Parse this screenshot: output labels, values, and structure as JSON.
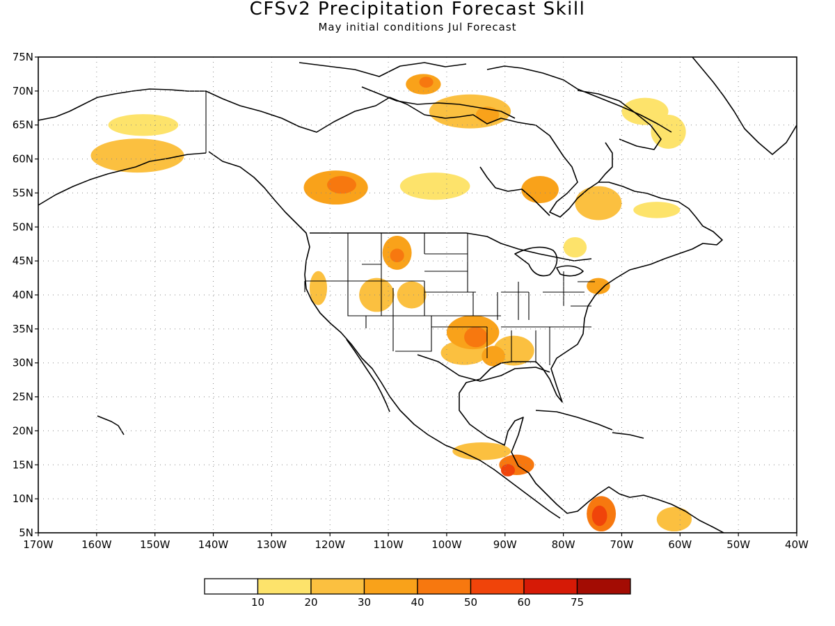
{
  "title": "CFSv2 Precipitation Forecast Skill",
  "subtitle": "May initial conditions   Jul Forecast",
  "map": {
    "lon_range": [
      -170,
      -40
    ],
    "lat_range": [
      5,
      75
    ],
    "lat_ticks": [
      {
        "value": 75,
        "label": "75N"
      },
      {
        "value": 70,
        "label": "70N"
      },
      {
        "value": 65,
        "label": "65N"
      },
      {
        "value": 60,
        "label": "60N"
      },
      {
        "value": 55,
        "label": "55N"
      },
      {
        "value": 50,
        "label": "50N"
      },
      {
        "value": 45,
        "label": "45N"
      },
      {
        "value": 40,
        "label": "40N"
      },
      {
        "value": 35,
        "label": "35N"
      },
      {
        "value": 30,
        "label": "30N"
      },
      {
        "value": 25,
        "label": "25N"
      },
      {
        "value": 20,
        "label": "20N"
      },
      {
        "value": 15,
        "label": "15N"
      },
      {
        "value": 10,
        "label": "10N"
      },
      {
        "value": 5,
        "label": "5N"
      }
    ],
    "lon_ticks": [
      {
        "value": -170,
        "label": "170W"
      },
      {
        "value": -160,
        "label": "160W"
      },
      {
        "value": -150,
        "label": "150W"
      },
      {
        "value": -140,
        "label": "140W"
      },
      {
        "value": -130,
        "label": "130W"
      },
      {
        "value": -120,
        "label": "120W"
      },
      {
        "value": -110,
        "label": "110W"
      },
      {
        "value": -100,
        "label": "100W"
      },
      {
        "value": -90,
        "label": "90W"
      },
      {
        "value": -80,
        "label": "80W"
      },
      {
        "value": -70,
        "label": "70W"
      },
      {
        "value": -60,
        "label": "60W"
      },
      {
        "value": -50,
        "label": "50W"
      },
      {
        "value": -40,
        "label": "40W"
      }
    ],
    "grid": true
  },
  "colorbar": {
    "colors": [
      "#ffffff",
      "#fde36b",
      "#fbc040",
      "#f9a21a",
      "#f7780f",
      "#f0440a",
      "#d61a06",
      "#a30c03"
    ],
    "labels": [
      "10",
      "20",
      "30",
      "40",
      "50",
      "60",
      "75"
    ]
  },
  "skill_regions": [
    {
      "lon": -119,
      "lat": 55.8,
      "rx": 5.5,
      "ry": 2.5,
      "level": 3
    },
    {
      "lon": -118,
      "lat": 56.2,
      "rx": 2.5,
      "ry": 1.3,
      "level": 4
    },
    {
      "lon": -108.5,
      "lat": 46.2,
      "rx": 2.5,
      "ry": 2.5,
      "level": 3
    },
    {
      "lon": -108.5,
      "lat": 45.8,
      "rx": 1.2,
      "ry": 1.0,
      "level": 4
    },
    {
      "lon": -95.5,
      "lat": 34.5,
      "rx": 4.5,
      "ry": 2.5,
      "level": 3
    },
    {
      "lon": -95,
      "lat": 33.8,
      "rx": 2.0,
      "ry": 1.5,
      "level": 4
    },
    {
      "lon": -97,
      "lat": 31.5,
      "rx": 4.0,
      "ry": 1.8,
      "level": 2
    },
    {
      "lon": -88.5,
      "lat": 31.8,
      "rx": 3.5,
      "ry": 2.2,
      "level": 2
    },
    {
      "lon": -92,
      "lat": 31,
      "rx": 2.0,
      "ry": 1.5,
      "level": 3
    },
    {
      "lon": -88,
      "lat": 15,
      "rx": 3.0,
      "ry": 1.5,
      "level": 4
    },
    {
      "lon": -89.5,
      "lat": 14.2,
      "rx": 1.2,
      "ry": 0.9,
      "level": 5
    },
    {
      "lon": -94,
      "lat": 17,
      "rx": 5.0,
      "ry": 1.3,
      "level": 2
    },
    {
      "lon": -73.5,
      "lat": 7.8,
      "rx": 2.5,
      "ry": 2.6,
      "level": 4
    },
    {
      "lon": -73.8,
      "lat": 7.5,
      "rx": 1.3,
      "ry": 1.5,
      "level": 5
    },
    {
      "lon": -61,
      "lat": 7,
      "rx": 3.0,
      "ry": 1.8,
      "level": 2
    },
    {
      "lon": -84,
      "lat": 55.5,
      "rx": 3.2,
      "ry": 2.0,
      "level": 3
    },
    {
      "lon": -74,
      "lat": 53.5,
      "rx": 4.0,
      "ry": 2.5,
      "level": 2
    },
    {
      "lon": -96,
      "lat": 67,
      "rx": 7.0,
      "ry": 2.5,
      "level": 2
    },
    {
      "lon": -93,
      "lat": 66.5,
      "rx": 2.0,
      "ry": 1.2,
      "level": 3
    },
    {
      "lon": -104,
      "lat": 71,
      "rx": 3.0,
      "ry": 1.5,
      "level": 3
    },
    {
      "lon": -103.5,
      "lat": 71.3,
      "rx": 1.2,
      "ry": 0.8,
      "level": 4
    },
    {
      "lon": -153,
      "lat": 60.5,
      "rx": 8.0,
      "ry": 2.5,
      "level": 2
    },
    {
      "lon": -152,
      "lat": 65,
      "rx": 6.0,
      "ry": 1.6,
      "level": 1
    },
    {
      "lon": -74,
      "lat": 41.3,
      "rx": 2.0,
      "ry": 1.2,
      "level": 3
    },
    {
      "lon": -122,
      "lat": 41,
      "rx": 1.5,
      "ry": 2.5,
      "level": 2
    },
    {
      "lon": -112,
      "lat": 40,
      "rx": 3.0,
      "ry": 2.5,
      "level": 2
    },
    {
      "lon": -106,
      "lat": 40,
      "rx": 2.5,
      "ry": 2.0,
      "level": 2
    },
    {
      "lon": -102,
      "lat": 56,
      "rx": 6.0,
      "ry": 2.0,
      "level": 1
    },
    {
      "lon": -64,
      "lat": 52.5,
      "rx": 4.0,
      "ry": 1.2,
      "level": 1
    },
    {
      "lon": -66,
      "lat": 67,
      "rx": 4.0,
      "ry": 2.0,
      "level": 1
    },
    {
      "lon": -78,
      "lat": 47,
      "rx": 2.0,
      "ry": 1.5,
      "level": 1
    },
    {
      "lon": -62,
      "lat": 64,
      "rx": 3.0,
      "ry": 2.5,
      "level": 1
    }
  ]
}
